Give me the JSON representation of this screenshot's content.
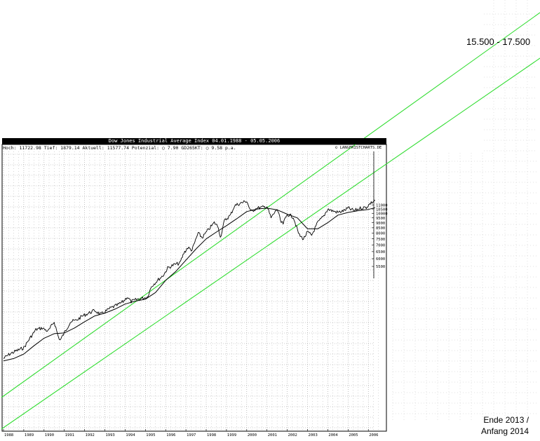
{
  "header": {
    "title": "Dow Jones Industrial Average Index 04.01.1988 - 05.05.2006",
    "stats": "Hoch: 11722.98  Tief: 1879.14  Aktuell: 11577.74  Potenzial: ○ 7.90  GD265KT: ○ 9.58 p.a.",
    "copyright": "© LANGFRISTCHARTS.DE"
  },
  "annotations": {
    "target_range": "15.500 - 17.500",
    "target_date_line1": "Ende 2013 /",
    "target_date_line2": "Anfang 2014"
  },
  "colors": {
    "price": "#000000",
    "moving_average": "#000000",
    "channel": "#33dd33",
    "grid": "#9a9a9a",
    "title_bg": "#000000"
  },
  "chart_data": {
    "type": "line",
    "title": "Dow Jones Industrial Average Index 04.01.1988 - 05.05.2006",
    "x_ticks": [
      "1988",
      "1989",
      "1990",
      "1991",
      "1992",
      "1993",
      "1994",
      "1995",
      "1996",
      "1997",
      "1998",
      "1999",
      "2000",
      "2001",
      "2002",
      "2003",
      "2004",
      "2005",
      "2006"
    ],
    "y_ticks": [
      5500,
      6000,
      6500,
      7000,
      7500,
      8000,
      8500,
      9000,
      9500,
      10000,
      10500,
      11000
    ],
    "xlim": [
      1988.0,
      2006.5
    ],
    "log_scale": true,
    "grid": true,
    "series": [
      {
        "style": "price",
        "x": [
          1988.0,
          1988.3,
          1988.6,
          1989.0,
          1989.3,
          1989.6,
          1989.9,
          1990.2,
          1990.5,
          1990.7,
          1990.8,
          1991.0,
          1991.3,
          1991.6,
          1991.9,
          1992.2,
          1992.5,
          1992.8,
          1993.0,
          1993.3,
          1993.6,
          1993.9,
          1994.1,
          1994.3,
          1994.6,
          1994.9,
          1995.1,
          1995.3,
          1995.6,
          1995.9,
          1996.1,
          1996.4,
          1996.7,
          1996.9,
          1997.1,
          1997.3,
          1997.6,
          1997.8,
          1998.1,
          1998.4,
          1998.6,
          1998.7,
          1998.9,
          1999.2,
          1999.4,
          1999.7,
          1999.9,
          2000.0,
          2000.2,
          2000.5,
          2000.8,
          2001.0,
          2001.2,
          2001.5,
          2001.7,
          2001.8,
          2002.0,
          2002.3,
          2002.5,
          2002.6,
          2002.8,
          2003.0,
          2003.2,
          2003.5,
          2003.8,
          2004.0,
          2004.2,
          2004.5,
          2004.8,
          2005.0,
          2005.3,
          2005.6,
          2005.9,
          2006.1,
          2006.34
        ],
        "y": [
          1950,
          2050,
          2120,
          2200,
          2450,
          2700,
          2750,
          2650,
          2950,
          2500,
          2400,
          2600,
          2950,
          3000,
          3150,
          3250,
          3350,
          3200,
          3300,
          3450,
          3550,
          3700,
          3900,
          3700,
          3800,
          3850,
          3900,
          4400,
          4700,
          5000,
          5400,
          5600,
          5700,
          6400,
          6800,
          6600,
          8000,
          7600,
          8300,
          9000,
          8600,
          7600,
          9200,
          9800,
          10900,
          11200,
          11400,
          11500,
          10200,
          10600,
          10700,
          10800,
          9500,
          10500,
          9000,
          8900,
          9900,
          9600,
          8300,
          7800,
          7500,
          8100,
          7800,
          9000,
          9700,
          10500,
          10300,
          10100,
          10300,
          10600,
          10300,
          10600,
          10700,
          11200,
          11578
        ]
      },
      {
        "style": "moving_average",
        "x": [
          1988.0,
          1988.5,
          1989.0,
          1989.5,
          1990.0,
          1990.5,
          1991.0,
          1991.5,
          1992.0,
          1992.5,
          1993.0,
          1993.5,
          1994.0,
          1994.5,
          1995.0,
          1995.5,
          1996.0,
          1996.5,
          1997.0,
          1997.5,
          1998.0,
          1998.5,
          1999.0,
          1999.5,
          2000.0,
          2000.5,
          2001.0,
          2001.5,
          2002.0,
          2002.5,
          2003.0,
          2003.5,
          2004.0,
          2004.5,
          2005.0,
          2005.5,
          2006.0,
          2006.34
        ],
        "y": [
          1900,
          1950,
          2050,
          2250,
          2450,
          2580,
          2600,
          2750,
          2950,
          3150,
          3250,
          3400,
          3600,
          3720,
          3800,
          4100,
          4700,
          5200,
          5900,
          6700,
          7500,
          8100,
          8700,
          9400,
          10200,
          10500,
          10600,
          10400,
          9900,
          9500,
          8400,
          8400,
          9000,
          9800,
          10100,
          10300,
          10450,
          10650
        ]
      }
    ]
  }
}
